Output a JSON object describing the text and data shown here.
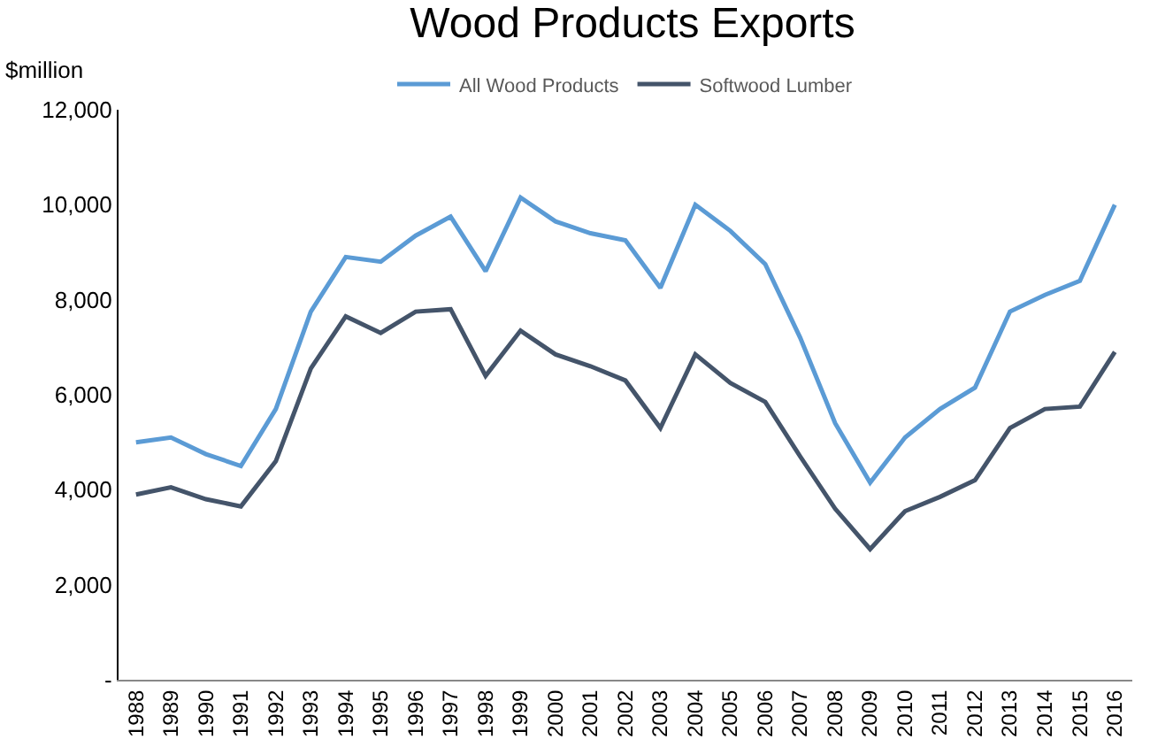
{
  "chart_data": {
    "type": "line",
    "title": "Wood Products Exports",
    "ylabel": "$million",
    "categories": [
      "1988",
      "1989",
      "1990",
      "1991",
      "1992",
      "1993",
      "1994",
      "1995",
      "1996",
      "1997",
      "1998",
      "1999",
      "2000",
      "2001",
      "2002",
      "2003",
      "2004",
      "2005",
      "2006",
      "2007",
      "2008",
      "2009",
      "2010",
      "2011",
      "2012",
      "2013",
      "2014",
      "2015",
      "2016"
    ],
    "series": [
      {
        "name": "All Wood Products",
        "color": "#5b9bd5",
        "values": [
          5000,
          5100,
          4750,
          4500,
          5700,
          7750,
          8900,
          8800,
          9350,
          9750,
          8600,
          10150,
          9650,
          9400,
          9250,
          8250,
          10000,
          9450,
          8750,
          7200,
          5400,
          4150,
          5100,
          5700,
          6150,
          7750,
          8100,
          8400,
          10000
        ]
      },
      {
        "name": "Softwood Lumber",
        "color": "#44546a",
        "values": [
          3900,
          4050,
          3800,
          3650,
          4600,
          6550,
          7650,
          7300,
          7750,
          7800,
          6400,
          7350,
          6850,
          6600,
          6300,
          5300,
          6850,
          6250,
          5850,
          4700,
          3600,
          2750,
          3550,
          3850,
          4200,
          5300,
          5700,
          5750,
          6900
        ]
      }
    ],
    "ylim": [
      0,
      12000
    ],
    "yticks": [
      {
        "value": 0,
        "label": "-"
      },
      {
        "value": 2000,
        "label": "2,000"
      },
      {
        "value": 4000,
        "label": "4,000"
      },
      {
        "value": 6000,
        "label": "6,000"
      },
      {
        "value": 8000,
        "label": "8,000"
      },
      {
        "value": 10000,
        "label": "10,000"
      },
      {
        "value": 12000,
        "label": "12,000"
      }
    ],
    "grid": false,
    "legend": "top",
    "marker": "none",
    "line_style": "solid"
  }
}
